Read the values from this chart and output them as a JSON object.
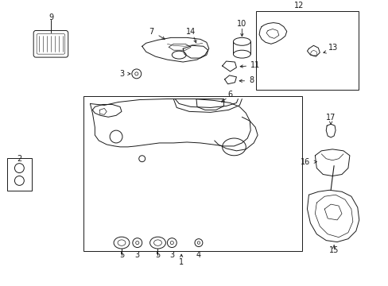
{
  "bg_color": "#ffffff",
  "lc": "#1a1a1a",
  "fig_width": 4.89,
  "fig_height": 3.6,
  "dpi": 100,
  "lw": 0.7,
  "fs": 7.0
}
